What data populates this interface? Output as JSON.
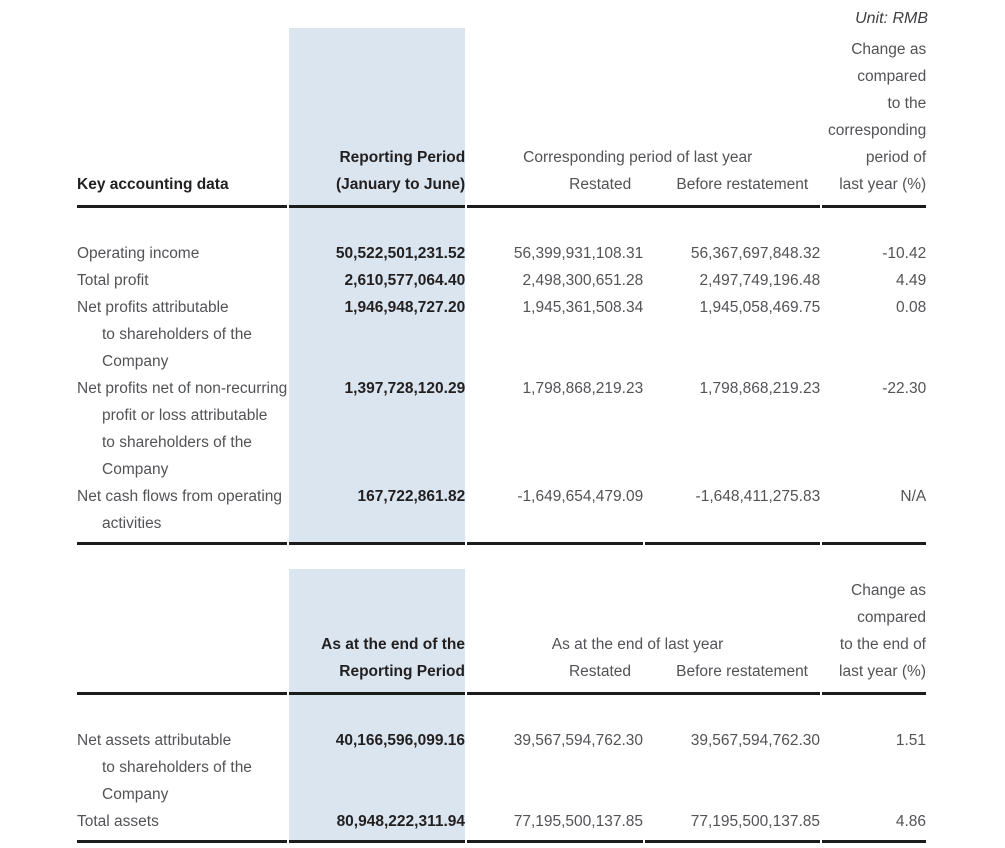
{
  "unit_label": "Unit: RMB",
  "colors": {
    "highlight": "#dbe5ef",
    "body_text": "#525357",
    "bold_text": "#221f20",
    "rule": "#1c1c1c"
  },
  "table1": {
    "col1_header": "Key accounting data",
    "col2_header_lines": [
      "Reporting Period",
      "(January to June)"
    ],
    "group_header": "Corresponding period of last year",
    "sub_headers": [
      "Restated",
      "Before restatement"
    ],
    "change_header_lines": [
      "Change as",
      "compared",
      "to the",
      "corresponding",
      "period of",
      "last year (%)"
    ],
    "rows": [
      {
        "label_lines": [
          "Operating income"
        ],
        "reporting_period": "50,522,501,231.52",
        "restated": "56,399,931,108.31",
        "before_restatement": "56,367,697,848.32",
        "change": "-10.42"
      },
      {
        "label_lines": [
          "Total profit"
        ],
        "reporting_period": "2,610,577,064.40",
        "restated": "2,498,300,651.28",
        "before_restatement": "2,497,749,196.48",
        "change": "4.49"
      },
      {
        "label_lines": [
          "Net profits attributable",
          "to shareholders of the",
          "Company"
        ],
        "reporting_period": "1,946,948,727.20",
        "restated": "1,945,361,508.34",
        "before_restatement": "1,945,058,469.75",
        "change": "0.08"
      },
      {
        "label_lines": [
          "Net profits net of non-recurring",
          "profit or loss attributable",
          "to shareholders of the",
          "Company"
        ],
        "reporting_period": "1,397,728,120.29",
        "restated": "1,798,868,219.23",
        "before_restatement": "1,798,868,219.23",
        "change": "-22.30"
      },
      {
        "label_lines": [
          "Net cash flows from operating",
          "activities"
        ],
        "reporting_period": "167,722,861.82",
        "restated": "-1,649,654,479.09",
        "before_restatement": "-1,648,411,275.83",
        "change": "N/A"
      }
    ]
  },
  "table2": {
    "col2_header_lines": [
      "As at the end of the",
      "Reporting Period"
    ],
    "group_header": "As at the end of last year",
    "sub_headers": [
      "Restated",
      "Before restatement"
    ],
    "change_header_lines": [
      "Change as",
      "compared",
      "to the end of",
      "last year (%)"
    ],
    "rows": [
      {
        "label_lines": [
          "Net assets attributable",
          "to shareholders of the",
          "Company"
        ],
        "reporting_period": "40,166,596,099.16",
        "restated": "39,567,594,762.30",
        "before_restatement": "39,567,594,762.30",
        "change": "1.51"
      },
      {
        "label_lines": [
          "Total assets"
        ],
        "reporting_period": "80,948,222,311.94",
        "restated": "77,195,500,137.85",
        "before_restatement": "77,195,500,137.85",
        "change": "4.86"
      }
    ]
  }
}
